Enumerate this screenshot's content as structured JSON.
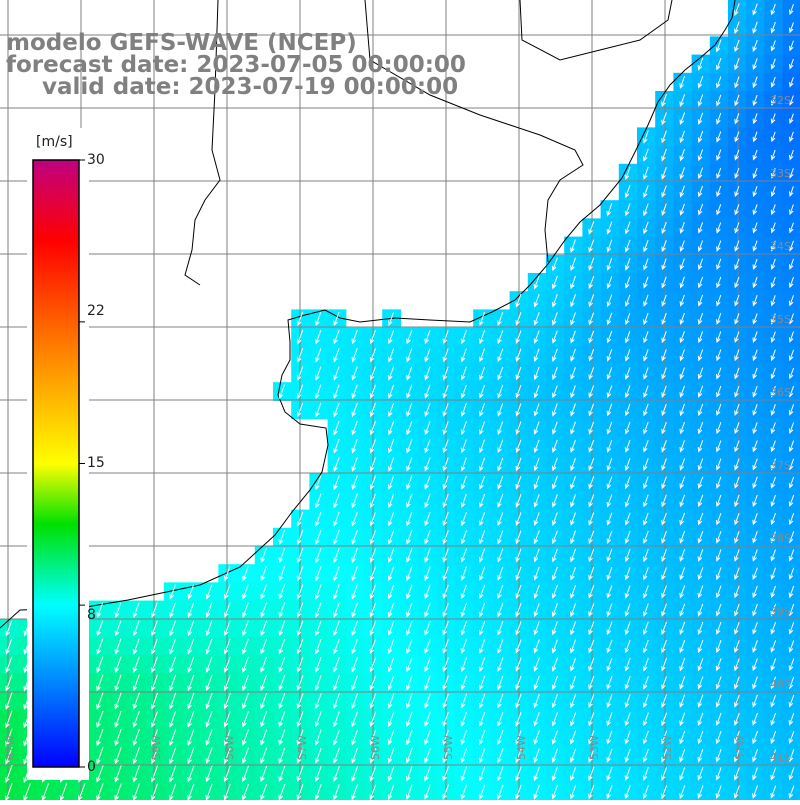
{
  "title": {
    "line1": "modelo GEFS-WAVE (NCEP)",
    "line2": "forecast date: 2023-07-05 00:00:00",
    "line3": "valid date: 2023-07-19 00:00:00"
  },
  "colorbar": {
    "unit": "[m/s]",
    "ticks": [
      {
        "value": 30,
        "label": "30"
      },
      {
        "value": 22,
        "label": "22"
      },
      {
        "value": 15,
        "label": "15"
      },
      {
        "value": 8,
        "label": "8"
      },
      {
        "value": 0,
        "label": "0"
      }
    ],
    "min": 0,
    "max": 30,
    "stops": [
      {
        "value": 0,
        "color": "#0000ff"
      },
      {
        "value": 8,
        "color": "#00ffff"
      },
      {
        "value": 12,
        "color": "#00e000"
      },
      {
        "value": 15,
        "color": "#ffff00"
      },
      {
        "value": 22,
        "color": "#ff6000"
      },
      {
        "value": 26,
        "color": "#ff0000"
      },
      {
        "value": 30,
        "color": "#c00080"
      }
    ]
  },
  "map": {
    "lon_range": [
      -61,
      -50
    ],
    "lat_range": [
      -42,
      -31
    ],
    "lat_labels": [
      "32S",
      "33S",
      "34S",
      "35S",
      "36S",
      "37S",
      "38S",
      "39S",
      "40S",
      "41S"
    ],
    "lon_labels": [
      "61W",
      "60W",
      "59W",
      "58W",
      "57W",
      "56W",
      "55W",
      "54W",
      "53W",
      "52W",
      "51W"
    ],
    "wind_field": {
      "sw_speed": 11,
      "ne_speed": 3,
      "near_coast_speed": 7.5,
      "direction_to_deg": 200
    },
    "colors": {
      "land": "#ffffff",
      "coastline": "#000000",
      "grid": "#808080",
      "arrow": "#ffffff"
    }
  }
}
